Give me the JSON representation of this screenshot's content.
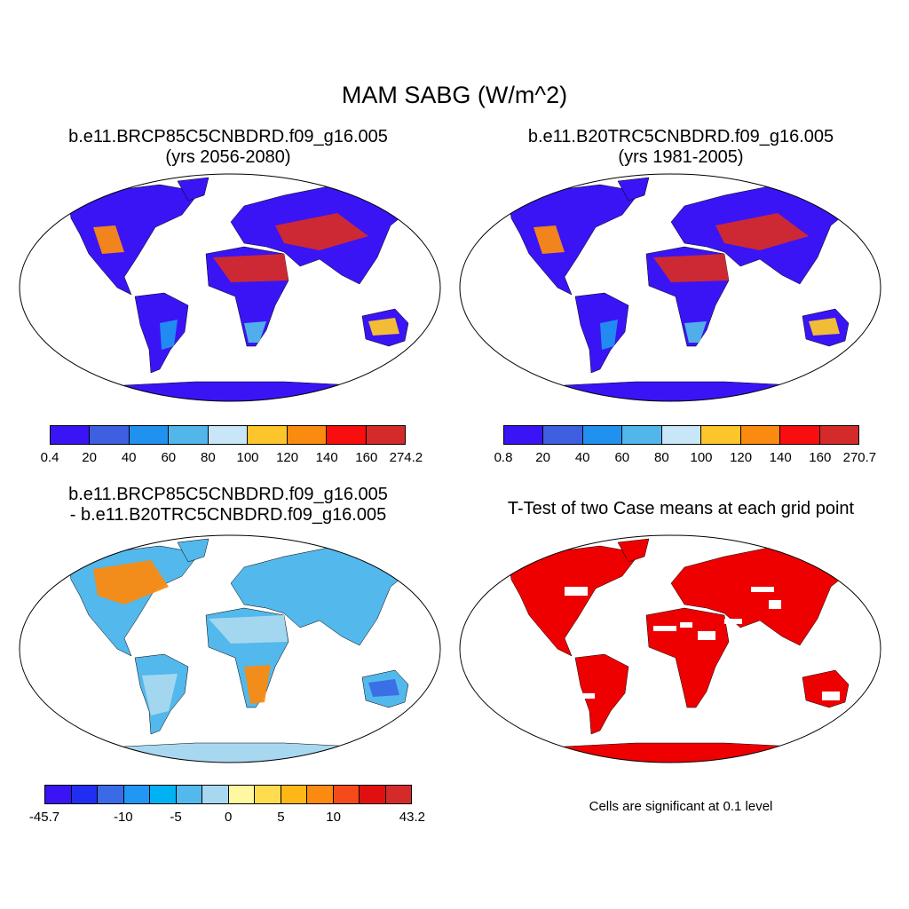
{
  "figure": {
    "title": "MAM SABG (W/m^2)",
    "note": "Cells are significant at 0.1 level"
  },
  "panels": [
    {
      "id": "case",
      "title_line1": "b.e11.BRCP85C5CNBDRD.f09_g16.005",
      "title_line2": "(yrs 2056-2080)",
      "colorbar": {
        "labels": [
          "0.4",
          "20",
          "40",
          "60",
          "80",
          "100",
          "120",
          "140",
          "160",
          "274.2"
        ],
        "colors": [
          "#3a14f5",
          "#3d5fe0",
          "#2191f0",
          "#53b6ea",
          "#c8e6f8",
          "#fcc52c",
          "#fb8a10",
          "#f80e0e",
          "#d42a2a"
        ]
      }
    },
    {
      "id": "control",
      "title_line1": "b.e11.B20TRC5CNBDRD.f09_g16.005",
      "title_line2": "(yrs 1981-2005)",
      "colorbar": {
        "labels": [
          "0.8",
          "20",
          "40",
          "60",
          "80",
          "100",
          "120",
          "140",
          "160",
          "270.7"
        ],
        "colors": [
          "#3a14f5",
          "#3d5fe0",
          "#2191f0",
          "#53b6ea",
          "#c8e6f8",
          "#fcc52c",
          "#fb8a10",
          "#f80e0e",
          "#d42a2a"
        ]
      }
    },
    {
      "id": "difference",
      "title_line1": "b.e11.BRCP85C5CNBDRD.f09_g16.005",
      "title_line2": "- b.e11.B20TRC5CNBDRD.f09_g16.005",
      "colorbar": {
        "labels": [
          "-45.7",
          "-10",
          "-5",
          "0",
          "5",
          "10",
          "43.2"
        ],
        "colors": [
          "#3a14f5",
          "#1f2ef0",
          "#3a6ae6",
          "#2196f3",
          "#00b2f2",
          "#53b8ec",
          "#a8d8f0",
          "#fff8a0",
          "#fddc50",
          "#fdb817",
          "#fb8a10",
          "#f54a1a",
          "#e01010",
          "#d42a2a"
        ]
      }
    },
    {
      "id": "ttest",
      "title_line1": "T-Test of two Case means at each grid point",
      "significance_color": "#ee0000"
    }
  ],
  "colors": {
    "land_default": "#3a14f5",
    "antarctica": "#3a14f5",
    "antarctica_diff": "#a8d8f0",
    "significance": "#ee0000",
    "map_outline": "#000000"
  }
}
